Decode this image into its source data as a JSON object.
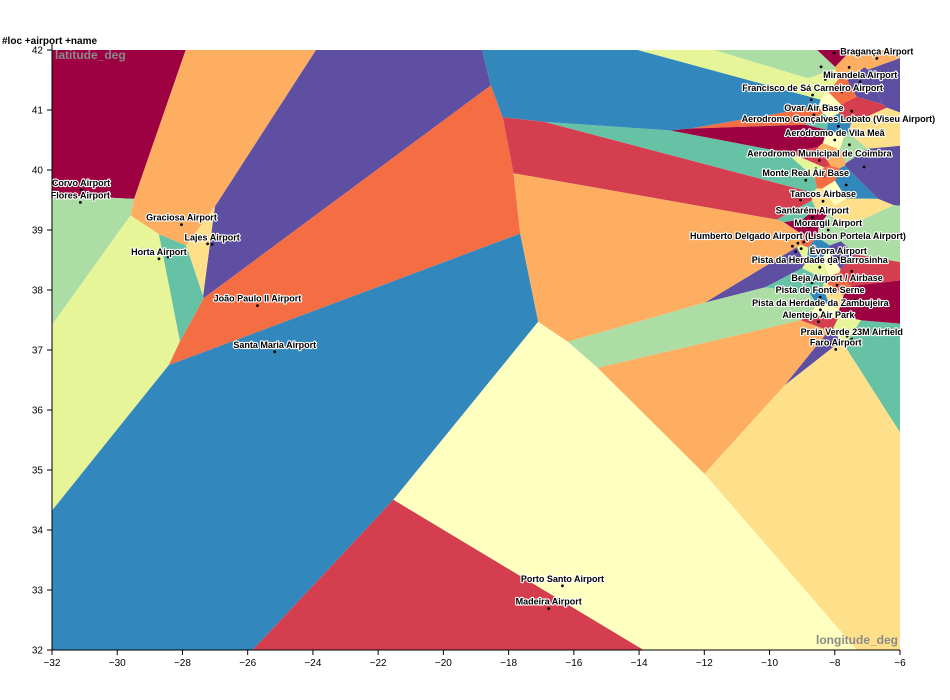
{
  "header": {
    "tag": "#loc +airport +name"
  },
  "chart_data": {
    "type": "scatter",
    "subtype": "voronoi-map",
    "xlabel": "longitude_deg",
    "ylabel": "latitude_deg",
    "xlim": [
      -32,
      -6
    ],
    "ylim": [
      32,
      42
    ],
    "xticks": [
      -32,
      -30,
      -28,
      -26,
      -24,
      -22,
      -20,
      -18,
      -16,
      -14,
      -12,
      -10,
      -8,
      -6
    ],
    "yticks": [
      32,
      33,
      34,
      35,
      36,
      37,
      38,
      39,
      40,
      41,
      42
    ],
    "palette": [
      "#9e0142",
      "#d53e4f",
      "#f46d43",
      "#fdae61",
      "#fee08b",
      "#ffffbf",
      "#e6f598",
      "#abdda4",
      "#66c2a5",
      "#3288bd",
      "#5e4fa2"
    ],
    "labeled_points": [
      {
        "name": "Bragança Airport",
        "x": -6.71,
        "y": 41.86
      },
      {
        "name": "Mirandela Airport",
        "x": -7.22,
        "y": 41.47
      },
      {
        "name": "Francisco de Sá Carneiro Airport",
        "x": -8.68,
        "y": 41.25
      },
      {
        "name": "Ovar Air Base",
        "x": -8.64,
        "y": 40.92
      },
      {
        "name": "Aerodromo Gonçalves Lobato (Viseu Airport)",
        "x": -7.89,
        "y": 40.73
      },
      {
        "name": "Aeródromo de Vila Meã",
        "x": -8.0,
        "y": 40.5
      },
      {
        "name": "Aerodromo Municipal de Coimbra",
        "x": -8.47,
        "y": 40.16
      },
      {
        "name": "Monte Real Air Base",
        "x": -8.89,
        "y": 39.83
      },
      {
        "name": "Tancos Airbase",
        "x": -8.36,
        "y": 39.48
      },
      {
        "name": "Santarém Airport",
        "x": -8.69,
        "y": 39.21
      },
      {
        "name": "Morargil Airport",
        "x": -8.2,
        "y": 39.0
      },
      {
        "name": "Humberto Delgado Airport (Lisbon Portela Airport)",
        "x": -9.13,
        "y": 38.78
      },
      {
        "name": "Évora Airport",
        "x": -7.89,
        "y": 38.53
      },
      {
        "name": "Pista da Herdade da Barrosinha",
        "x": -8.46,
        "y": 38.38
      },
      {
        "name": "Beja Airport / Airbase",
        "x": -7.93,
        "y": 38.08
      },
      {
        "name": "Pista de Fonte Serne",
        "x": -8.45,
        "y": 37.88
      },
      {
        "name": "Pista da Herdade da Zambujeira",
        "x": -8.44,
        "y": 37.67
      },
      {
        "name": "Alentejo Air Park",
        "x": -8.5,
        "y": 37.47
      },
      {
        "name": "Praia Verde 23M Airfield",
        "x": -7.48,
        "y": 37.18
      },
      {
        "name": "Faro Airport",
        "x": -7.97,
        "y": 37.01
      },
      {
        "name": "Corvo Airport",
        "x": -31.11,
        "y": 39.67
      },
      {
        "name": "Flores Airport",
        "x": -31.13,
        "y": 39.46
      },
      {
        "name": "Graciosa Airport",
        "x": -28.03,
        "y": 39.09
      },
      {
        "name": "Lajes Airport",
        "x": -27.09,
        "y": 38.76
      },
      {
        "name": "Horta Airport",
        "x": -28.72,
        "y": 38.52
      },
      {
        "name": "João Paulo II Airport",
        "x": -25.7,
        "y": 37.74
      },
      {
        "name": "Santa Maria Airport",
        "x": -25.17,
        "y": 36.97
      },
      {
        "name": "Porto Santo Airport",
        "x": -16.35,
        "y": 33.07
      },
      {
        "name": "Madeira Airport",
        "x": -16.77,
        "y": 32.69
      }
    ],
    "unlabeled_points": [
      {
        "x": -28.44,
        "y": 38.55
      },
      {
        "x": -27.23,
        "y": 38.77
      },
      {
        "x": -8.02,
        "y": 41.95
      },
      {
        "x": -8.42,
        "y": 41.72
      },
      {
        "x": -7.56,
        "y": 41.71
      },
      {
        "x": -6.55,
        "y": 41.62
      },
      {
        "x": -8.29,
        "y": 41.51
      },
      {
        "x": -7.78,
        "y": 41.3
      },
      {
        "x": -8.72,
        "y": 41.17
      },
      {
        "x": -8.2,
        "y": 41.07
      },
      {
        "x": -7.48,
        "y": 40.98
      },
      {
        "x": -8.52,
        "y": 40.82
      },
      {
        "x": -7.2,
        "y": 40.64
      },
      {
        "x": -8.62,
        "y": 40.6
      },
      {
        "x": -7.55,
        "y": 40.42
      },
      {
        "x": -8.15,
        "y": 40.28
      },
      {
        "x": -7.1,
        "y": 40.05
      },
      {
        "x": -8.58,
        "y": 40.02
      },
      {
        "x": -8.34,
        "y": 39.9
      },
      {
        "x": -7.65,
        "y": 39.75
      },
      {
        "x": -8.02,
        "y": 39.62
      },
      {
        "x": -9.05,
        "y": 39.5
      },
      {
        "x": -8.88,
        "y": 39.33
      },
      {
        "x": -7.66,
        "y": 39.3
      },
      {
        "x": -8.8,
        "y": 39.05
      },
      {
        "x": -7.3,
        "y": 38.88
      },
      {
        "x": -9.3,
        "y": 38.73
      },
      {
        "x": -9.2,
        "y": 38.64
      },
      {
        "x": -9.03,
        "y": 38.69
      },
      {
        "x": -8.95,
        "y": 38.8
      },
      {
        "x": -8.6,
        "y": 38.66
      },
      {
        "x": -8.12,
        "y": 38.44
      },
      {
        "x": -7.48,
        "y": 38.31
      },
      {
        "x": -8.7,
        "y": 38.12
      },
      {
        "x": -8.1,
        "y": 37.95
      },
      {
        "x": -7.38,
        "y": 37.83
      },
      {
        "x": -8.79,
        "y": 37.76
      },
      {
        "x": -8.6,
        "y": 37.32
      },
      {
        "x": -8.1,
        "y": 37.1
      },
      {
        "x": -7.62,
        "y": 37.23
      }
    ]
  }
}
